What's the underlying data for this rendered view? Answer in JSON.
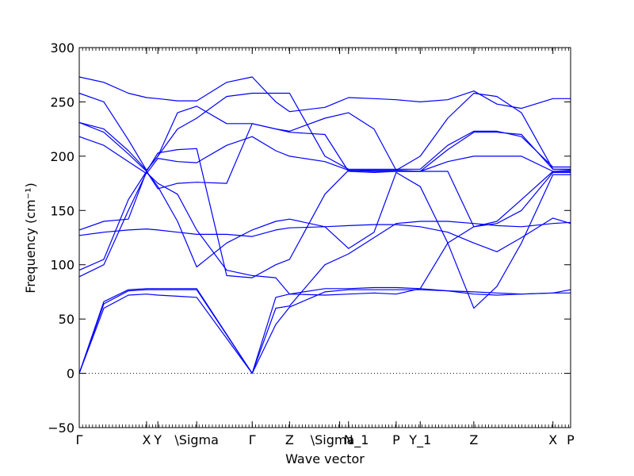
{
  "chart_data": {
    "type": "line",
    "xlabel": "Wave vector",
    "ylabel": "Frequency (cm⁻¹)",
    "ylim": [
      -50,
      300
    ],
    "yticks": [
      -50,
      0,
      50,
      100,
      150,
      200,
      250,
      300
    ],
    "xlim": [
      0,
      1
    ],
    "line_color": "#0000ff",
    "zero_line": {
      "value": 0,
      "style": "dotted",
      "color": "#000000"
    },
    "high_symmetry_points": [
      {
        "label": "Γ",
        "x": 0.0
      },
      {
        "label": "X",
        "x": 0.137
      },
      {
        "label": "Y",
        "x": 0.16
      },
      {
        "label": "\\Sigma",
        "x": 0.239
      },
      {
        "label": "Γ",
        "x": 0.352
      },
      {
        "label": "Z",
        "x": 0.428
      },
      {
        "label": "\\Sigma_1",
        "x": 0.53
      },
      {
        "label": "N",
        "x": 0.548
      },
      {
        "label": "P",
        "x": 0.645
      },
      {
        "label": "Y_1",
        "x": 0.694
      },
      {
        "label": "Z",
        "x": 0.803
      },
      {
        "label": "X",
        "x": 0.964
      },
      {
        "label": "P",
        "x": 1.0
      }
    ],
    "series": [
      {
        "x": [
          0,
          0.05,
          0.1,
          0.137,
          0.16,
          0.2,
          0.239,
          0.352,
          0.4,
          0.428,
          0.5,
          0.548,
          0.6,
          0.645,
          0.694,
          0.75,
          0.803,
          0.85,
          0.9,
          0.964,
          1.0
        ],
        "y": [
          0,
          60,
          72,
          73,
          72,
          71,
          70,
          0,
          45,
          61,
          75,
          77,
          77,
          77,
          77,
          76,
          75,
          74,
          73,
          74,
          74
        ]
      },
      {
        "x": [
          0,
          0.05,
          0.1,
          0.137,
          0.16,
          0.2,
          0.239,
          0.352,
          0.4,
          0.428,
          0.5,
          0.548,
          0.6,
          0.645,
          0.694,
          0.75,
          0.803,
          0.85,
          0.9,
          0.964,
          1.0
        ],
        "y": [
          0,
          64,
          76,
          77,
          77,
          77,
          77,
          0,
          60,
          62,
          100,
          110,
          125,
          138,
          140,
          140,
          138,
          136,
          135,
          138,
          139
        ]
      },
      {
        "x": [
          0,
          0.05,
          0.1,
          0.137,
          0.16,
          0.2,
          0.239,
          0.352,
          0.4,
          0.428,
          0.5,
          0.548,
          0.6,
          0.645,
          0.694,
          0.75,
          0.803,
          0.85,
          0.9,
          0.964,
          1.0
        ],
        "y": [
          0,
          66,
          77,
          78,
          78,
          78,
          78,
          0,
          70,
          73,
          72,
          73,
          74,
          73,
          78,
          120,
          135,
          138,
          150,
          185,
          185
        ]
      },
      {
        "x": [
          0,
          0.05,
          0.1,
          0.137,
          0.16,
          0.2,
          0.239,
          0.3,
          0.352,
          0.4,
          0.428,
          0.5,
          0.548,
          0.6,
          0.645,
          0.694,
          0.75,
          0.803,
          0.85,
          0.9,
          0.964,
          1.0
        ],
        "y": [
          89,
          100,
          150,
          185,
          175,
          165,
          132,
          95,
          90,
          88,
          73,
          78,
          78,
          79,
          79,
          78,
          76,
          73,
          72,
          73,
          74,
          77
        ]
      },
      {
        "x": [
          0,
          0.05,
          0.1,
          0.137,
          0.16,
          0.2,
          0.239,
          0.3,
          0.352,
          0.4,
          0.428,
          0.5,
          0.548,
          0.6,
          0.645,
          0.694,
          0.75,
          0.803,
          0.85,
          0.9,
          0.964,
          1.0
        ],
        "y": [
          95,
          105,
          160,
          186,
          172,
          140,
          98,
          120,
          132,
          140,
          142,
          135,
          115,
          130,
          185,
          172,
          120,
          60,
          80,
          120,
          183,
          183
        ]
      },
      {
        "x": [
          0,
          0.05,
          0.1,
          0.137,
          0.16,
          0.2,
          0.239,
          0.3,
          0.352,
          0.4,
          0.428,
          0.5,
          0.548,
          0.6,
          0.645,
          0.694,
          0.75,
          0.803,
          0.85,
          0.9,
          0.964,
          1.0
        ],
        "y": [
          127,
          130,
          132,
          133,
          132,
          130,
          128,
          128,
          126,
          132,
          134,
          135,
          136,
          137,
          137,
          135,
          130,
          120,
          112,
          125,
          143,
          138
        ]
      },
      {
        "x": [
          0,
          0.05,
          0.1,
          0.137,
          0.16,
          0.2,
          0.239,
          0.3,
          0.352,
          0.4,
          0.428,
          0.5,
          0.548,
          0.6,
          0.645,
          0.694,
          0.75,
          0.803,
          0.85,
          0.9,
          0.964,
          1.0
        ],
        "y": [
          132,
          140,
          142,
          186,
          170,
          175,
          176,
          175,
          230,
          225,
          222,
          220,
          186,
          185,
          186,
          186,
          186,
          135,
          140,
          160,
          186,
          186
        ]
      },
      {
        "x": [
          0,
          0.05,
          0.1,
          0.137,
          0.16,
          0.2,
          0.239,
          0.3,
          0.352,
          0.4,
          0.428,
          0.5,
          0.548,
          0.6,
          0.645,
          0.694,
          0.75,
          0.803,
          0.85,
          0.9,
          0.964,
          1.0
        ],
        "y": [
          218,
          210,
          195,
          184,
          198,
          195,
          194,
          210,
          218,
          205,
          200,
          195,
          187,
          186,
          186,
          186,
          195,
          200,
          200,
          200,
          186,
          187
        ]
      },
      {
        "x": [
          0,
          0.05,
          0.1,
          0.137,
          0.16,
          0.2,
          0.239,
          0.3,
          0.352,
          0.4,
          0.428,
          0.5,
          0.548,
          0.6,
          0.645,
          0.694,
          0.75,
          0.803,
          0.85,
          0.9,
          0.964,
          1.0
        ],
        "y": [
          231,
          222,
          202,
          186,
          203,
          206,
          207,
          90,
          88,
          100,
          105,
          165,
          187,
          187,
          187,
          186,
          206,
          222,
          222,
          220,
          188,
          188
        ]
      },
      {
        "x": [
          0,
          0.05,
          0.1,
          0.137,
          0.16,
          0.2,
          0.239,
          0.3,
          0.352,
          0.4,
          0.428,
          0.5,
          0.548,
          0.6,
          0.645,
          0.694,
          0.75,
          0.803,
          0.85,
          0.9,
          0.964,
          1.0
        ],
        "y": [
          231,
          225,
          205,
          187,
          200,
          225,
          235,
          255,
          258,
          258,
          258,
          200,
          188,
          188,
          188,
          188,
          210,
          223,
          223,
          218,
          190,
          190
        ]
      },
      {
        "x": [
          0,
          0.05,
          0.1,
          0.137,
          0.16,
          0.2,
          0.239,
          0.3,
          0.352,
          0.4,
          0.428,
          0.5,
          0.548,
          0.6,
          0.645,
          0.694,
          0.75,
          0.803,
          0.85,
          0.9,
          0.964,
          1.0
        ],
        "y": [
          258,
          250,
          215,
          187,
          200,
          240,
          246,
          230,
          230,
          225,
          223,
          235,
          240,
          225,
          187,
          200,
          235,
          258,
          255,
          240,
          188,
          188
        ]
      },
      {
        "x": [
          0,
          0.05,
          0.1,
          0.137,
          0.16,
          0.2,
          0.239,
          0.3,
          0.352,
          0.4,
          0.428,
          0.5,
          0.548,
          0.6,
          0.645,
          0.694,
          0.75,
          0.803,
          0.85,
          0.9,
          0.964,
          1.0
        ],
        "y": [
          273,
          268,
          258,
          254,
          253,
          251,
          251,
          268,
          273,
          250,
          241,
          245,
          254,
          253,
          252,
          250,
          252,
          260,
          248,
          244,
          253,
          253
        ]
      }
    ]
  }
}
